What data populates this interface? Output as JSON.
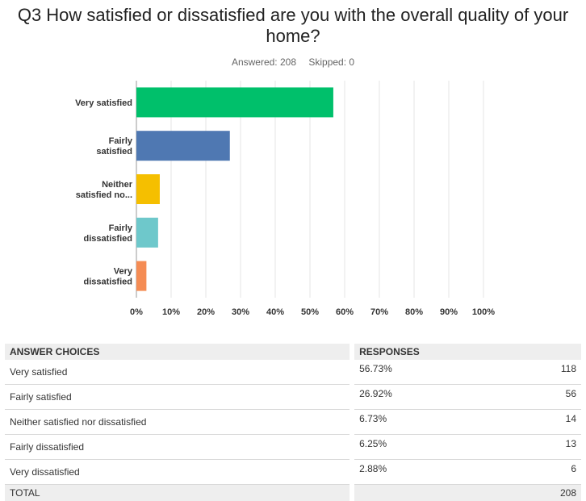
{
  "title": "Q3 How satisfied or dissatisfied are you with the overall quality of your home?",
  "answered": "Answered: 208",
  "skipped": "Skipped: 0",
  "chart_data": {
    "type": "bar",
    "orientation": "horizontal",
    "categories": [
      [
        "Very satisfied"
      ],
      [
        "Fairly",
        "satisfied"
      ],
      [
        "Neither",
        "satisfied no..."
      ],
      [
        "Fairly",
        "dissatisfied"
      ],
      [
        "Very",
        "dissatisfied"
      ]
    ],
    "values": [
      56.73,
      26.92,
      6.73,
      6.25,
      2.88
    ],
    "colors": [
      "#00c06b",
      "#4f78b2",
      "#f5bf00",
      "#6ec8cb",
      "#f58c54"
    ],
    "xlim": [
      0,
      100
    ],
    "ticks": [
      "0%",
      "10%",
      "20%",
      "30%",
      "40%",
      "50%",
      "60%",
      "70%",
      "80%",
      "90%",
      "100%"
    ],
    "grid": true
  },
  "table": {
    "headers": [
      "ANSWER CHOICES",
      "RESPONSES",
      ""
    ],
    "rows": [
      {
        "choice": "Very satisfied",
        "percent": "56.73%",
        "count": "118"
      },
      {
        "choice": "Fairly satisfied",
        "percent": "26.92%",
        "count": "56"
      },
      {
        "choice": "Neither satisfied nor dissatisfied",
        "percent": "6.73%",
        "count": "14"
      },
      {
        "choice": "Fairly dissatisfied",
        "percent": "6.25%",
        "count": "13"
      },
      {
        "choice": "Very dissatisfied",
        "percent": "2.88%",
        "count": "6"
      }
    ],
    "total_label": "TOTAL",
    "total_count": "208"
  }
}
